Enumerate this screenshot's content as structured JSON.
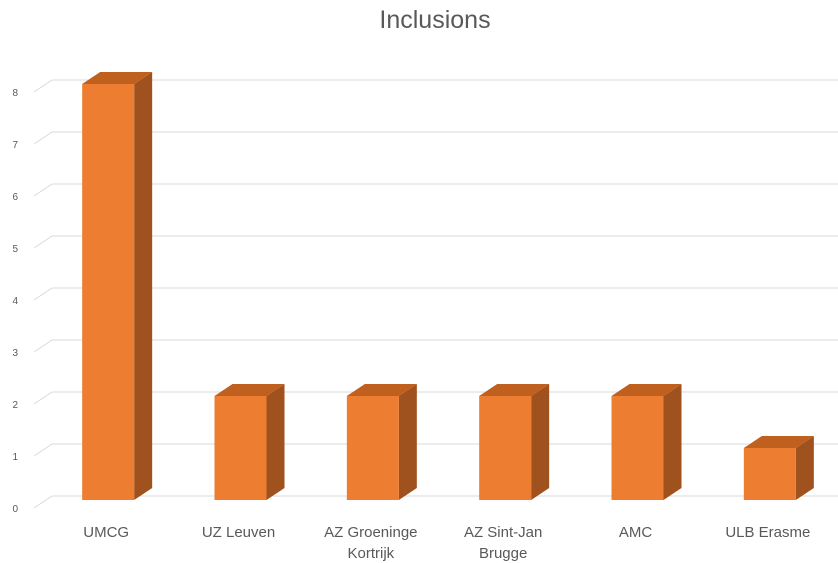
{
  "chart_data": {
    "type": "bar",
    "title": "Inclusions",
    "categories": [
      "UMCG",
      "UZ Leuven",
      "AZ Groeninge Kortrijk",
      "AZ Sint-Jan Brugge",
      "AMC",
      "ULB Erasme"
    ],
    "category_lines": [
      [
        "UMCG"
      ],
      [
        "UZ Leuven"
      ],
      [
        "AZ Groeninge",
        "Kortrijk"
      ],
      [
        "AZ Sint-Jan",
        "Brugge"
      ],
      [
        "AMC"
      ],
      [
        "ULB Erasme"
      ]
    ],
    "values": [
      8,
      2,
      2,
      2,
      2,
      1
    ],
    "yticks": [
      0,
      1,
      2,
      3,
      4,
      5,
      6,
      7,
      8
    ],
    "ylim": [
      0,
      8
    ],
    "xlabel": "",
    "ylabel": "",
    "grid": true,
    "legend": "none",
    "style": "3d-column",
    "colors": {
      "front": "#ED7D31",
      "side": "#A0521E",
      "top": "#C0601F",
      "grid": "#D9D9D9",
      "text": "#595959"
    }
  }
}
